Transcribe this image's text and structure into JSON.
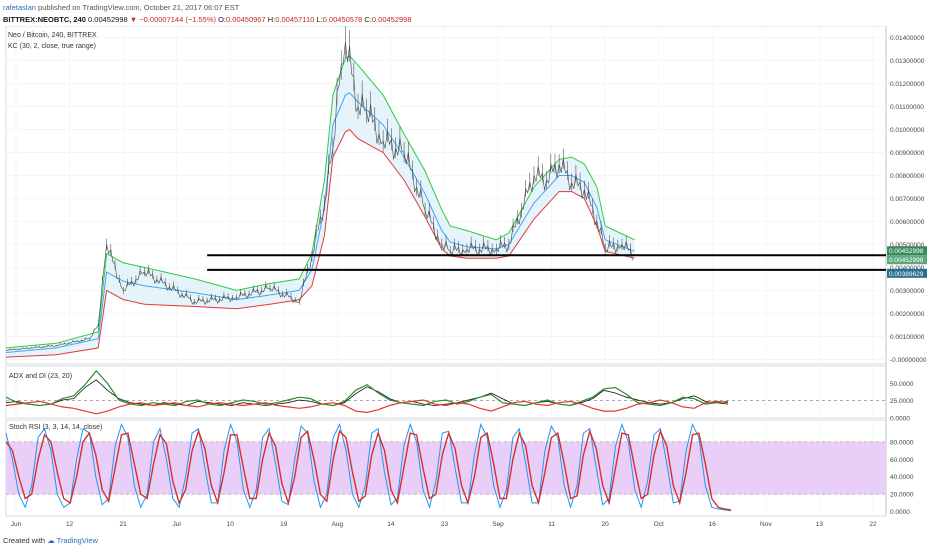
{
  "header": {
    "user": "rafetaslan",
    "published": "published on TradingView.com, October 21, 2017 06:07 EST",
    "symbol": "BITTREX:NEOBTC, 240",
    "last": "0.00452998",
    "change": "▼ −0.00007144 (−1.55%)",
    "o_label": "O:",
    "o": "0.00450967",
    "h_label": "H:",
    "h": "0.00457110",
    "l_label": "L:",
    "l": "0.00450578",
    "c_label": "C:",
    "c": "0.00452998"
  },
  "legend": {
    "title": "Neo / Bitcoin, 240, BITTREX",
    "kc": "KC (30, 2, close, true range)"
  },
  "indicators": {
    "adx": "ADX and DI (23, 20)",
    "stoch": "Stoch RSI (3, 3, 14, 14, close)"
  },
  "footer": {
    "created": "Created with",
    "brand": "TradingView"
  },
  "colors": {
    "upper_band": "#2ecc40",
    "lower_band": "#e53935",
    "mid_band": "#42a5f5",
    "fill": "#dff0fa",
    "adx": "#111111",
    "di_plus": "#2e8b2e",
    "di_minus": "#e53935",
    "stoch_k": "#2196f3",
    "stoch_d": "#d32f2f",
    "stoch_band": "#e9cff7"
  },
  "chart_data": [
    {
      "type": "line",
      "title": "Neo / Bitcoin, 240, BITTREX",
      "yticks": [
        "0.01400000",
        "0.01300000",
        "0.01200000",
        "0.01100000",
        "0.01000000",
        "0.00900000",
        "0.00800000",
        "0.00700000",
        "0.00600000",
        "0.00500000",
        "0.00400000",
        "0.00300000",
        "0.00200000",
        "0.00100000",
        "-0.00000000"
      ],
      "ylim": [
        -0.0002,
        0.0145
      ],
      "xticks": [
        "Jun",
        "12",
        "21",
        "Jul",
        "10",
        "19",
        "Aug",
        "14",
        "23",
        "Sep",
        "11",
        "20",
        "Oct",
        "16",
        "Nov",
        "13",
        "22"
      ],
      "price_labels": [
        "0.00452998",
        "0.00452998",
        "0.00389629"
      ],
      "series": [
        {
          "name": "upper",
          "x": [
            0,
            12,
            22,
            24,
            28,
            33,
            45,
            55,
            63,
            70,
            73,
            76,
            78,
            81,
            82,
            84,
            90,
            95,
            100,
            104,
            106,
            110,
            117,
            120,
            126,
            132,
            135,
            138,
            141,
            143,
            150
          ],
          "values": [
            0.0005,
            0.0007,
            0.0012,
            0.0046,
            0.0042,
            0.004,
            0.0035,
            0.003,
            0.0033,
            0.0035,
            0.0046,
            0.0078,
            0.0115,
            0.0131,
            0.0132,
            0.0128,
            0.0115,
            0.0098,
            0.0082,
            0.0065,
            0.0058,
            0.0056,
            0.0052,
            0.0055,
            0.0075,
            0.0087,
            0.0088,
            0.0085,
            0.0075,
            0.0058,
            0.0052
          ]
        },
        {
          "name": "middle",
          "x": [
            0,
            12,
            22,
            24,
            28,
            33,
            45,
            55,
            63,
            70,
            73,
            76,
            78,
            81,
            82,
            84,
            90,
            95,
            100,
            104,
            106,
            110,
            117,
            120,
            126,
            132,
            135,
            138,
            141,
            143,
            150
          ],
          "values": [
            0.0003,
            0.0005,
            0.0009,
            0.0038,
            0.0034,
            0.0032,
            0.0029,
            0.0026,
            0.0028,
            0.003,
            0.0039,
            0.0066,
            0.0102,
            0.0115,
            0.0116,
            0.0112,
            0.0102,
            0.0088,
            0.0072,
            0.0056,
            0.0051,
            0.0049,
            0.0048,
            0.005,
            0.0068,
            0.008,
            0.008,
            0.0077,
            0.0066,
            0.0052,
            0.0047
          ]
        },
        {
          "name": "lower",
          "x": [
            0,
            12,
            22,
            24,
            28,
            33,
            45,
            55,
            63,
            70,
            73,
            76,
            78,
            81,
            82,
            84,
            90,
            95,
            100,
            104,
            106,
            110,
            117,
            120,
            126,
            132,
            135,
            138,
            141,
            143,
            150
          ],
          "values": [
            0.0001,
            0.0002,
            0.0005,
            0.003,
            0.0026,
            0.0024,
            0.0023,
            0.0022,
            0.0024,
            0.0026,
            0.0032,
            0.0054,
            0.0088,
            0.0099,
            0.01,
            0.0096,
            0.009,
            0.0078,
            0.0062,
            0.0048,
            0.0045,
            0.0044,
            0.0044,
            0.0045,
            0.0061,
            0.0073,
            0.0073,
            0.007,
            0.0058,
            0.0047,
            0.0044
          ]
        },
        {
          "name": "close",
          "x": [
            0,
            12,
            20,
            22,
            24,
            28,
            33,
            45,
            55,
            63,
            70,
            73,
            76,
            78,
            80,
            81,
            84,
            86,
            90,
            95,
            100,
            104,
            106,
            110,
            117,
            120,
            126,
            129,
            132,
            135,
            138,
            141,
            143,
            147,
            150
          ],
          "values": [
            0.0004,
            0.0006,
            0.0009,
            0.0015,
            0.005,
            0.003,
            0.0038,
            0.0025,
            0.0027,
            0.0031,
            0.0025,
            0.0045,
            0.0068,
            0.0092,
            0.0128,
            0.0138,
            0.011,
            0.0108,
            0.0095,
            0.009,
            0.0065,
            0.005,
            0.0047,
            0.0048,
            0.0048,
            0.005,
            0.008,
            0.0078,
            0.0085,
            0.0077,
            0.0074,
            0.006,
            0.0048,
            0.005,
            0.0045
          ]
        }
      ],
      "hlines": [
        0.00452998,
        0.00389629
      ]
    },
    {
      "type": "line",
      "title": "ADX and DI (23, 20)",
      "yticks": [
        "50.0000",
        "25.0000",
        "0.0000"
      ],
      "ylim": [
        0,
        75
      ],
      "series": [
        {
          "name": "ADX",
          "values": [
            22,
            24,
            20,
            18,
            20,
            26,
            28,
            44,
            55,
            40,
            28,
            22,
            20,
            18,
            22,
            20,
            18,
            24,
            22,
            20,
            18,
            22,
            20,
            18,
            20,
            22,
            26,
            24,
            20,
            18,
            22,
            35,
            45,
            38,
            28,
            22,
            24,
            20,
            18,
            20,
            22,
            26,
            30,
            36,
            28,
            20,
            18,
            22,
            24,
            20,
            18,
            22,
            28,
            40,
            36,
            30,
            26,
            22,
            20,
            22,
            28,
            32,
            24,
            22,
            20
          ]
        },
        {
          "name": "DI+",
          "values": [
            30,
            22,
            20,
            18,
            20,
            28,
            32,
            48,
            68,
            50,
            26,
            20,
            18,
            22,
            20,
            18,
            24,
            26,
            20,
            18,
            22,
            26,
            24,
            20,
            22,
            26,
            30,
            28,
            20,
            18,
            24,
            40,
            48,
            36,
            26,
            22,
            20,
            18,
            24,
            26,
            20,
            24,
            30,
            34,
            22,
            20,
            18,
            22,
            26,
            20,
            18,
            24,
            30,
            42,
            44,
            34,
            22,
            20,
            18,
            22,
            30,
            28,
            20,
            22,
            24
          ]
        },
        {
          "name": "DI-",
          "values": [
            18,
            20,
            22,
            24,
            20,
            16,
            14,
            10,
            6,
            10,
            16,
            20,
            22,
            18,
            20,
            22,
            18,
            16,
            20,
            22,
            20,
            18,
            20,
            22,
            18,
            16,
            14,
            16,
            20,
            22,
            18,
            10,
            8,
            12,
            18,
            22,
            24,
            26,
            20,
            18,
            22,
            20,
            14,
            10,
            16,
            22,
            24,
            20,
            18,
            22,
            24,
            20,
            14,
            10,
            10,
            14,
            20,
            22,
            26,
            22,
            16,
            14,
            22,
            24,
            22
          ]
        }
      ],
      "hline": 25
    },
    {
      "type": "line",
      "title": "Stoch RSI (3, 3, 14, 14, close)",
      "yticks": [
        "80.0000",
        "60.0000",
        "40.0000",
        "20.0000",
        "0.0000"
      ],
      "ylim": [
        -5,
        105
      ],
      "band": [
        20,
        80
      ],
      "series": [
        {
          "name": "K",
          "values": [
            90,
            60,
            20,
            5,
            30,
            85,
            95,
            70,
            20,
            5,
            10,
            60,
            95,
            90,
            40,
            8,
            15,
            75,
            100,
            85,
            30,
            5,
            20,
            80,
            95,
            60,
            15,
            5,
            40,
            90,
            95,
            50,
            10,
            10,
            70,
            100,
            80,
            25,
            5,
            25,
            85,
            95,
            55,
            12,
            8,
            60,
            98,
            90,
            35,
            5,
            20,
            85,
            100,
            70,
            20,
            5,
            30,
            90,
            95,
            45,
            8,
            15,
            75,
            100,
            80,
            25,
            5,
            35,
            90,
            92,
            50,
            10,
            10,
            65,
            100,
            85,
            30,
            5,
            25,
            85,
            95,
            55,
            10,
            10,
            70,
            98,
            85,
            30,
            5,
            30,
            90,
            95,
            50,
            8,
            15,
            75,
            100,
            80,
            25,
            5,
            35,
            88,
            95,
            55,
            10,
            12,
            70,
            100,
            85,
            30,
            5,
            3,
            2,
            1
          ]
        },
        {
          "name": "D",
          "values": [
            80,
            70,
            40,
            15,
            20,
            60,
            88,
            80,
            45,
            15,
            10,
            40,
            80,
            90,
            65,
            25,
            12,
            50,
            88,
            90,
            55,
            20,
            15,
            55,
            88,
            78,
            35,
            10,
            25,
            70,
            92,
            72,
            30,
            10,
            45,
            88,
            88,
            50,
            15,
            15,
            60,
            90,
            75,
            32,
            10,
            40,
            85,
            92,
            60,
            20,
            12,
            60,
            92,
            85,
            45,
            12,
            18,
            65,
            90,
            70,
            25,
            10,
            50,
            90,
            88,
            50,
            15,
            20,
            65,
            90,
            72,
            30,
            10,
            40,
            85,
            90,
            55,
            15,
            15,
            60,
            90,
            75,
            30,
            10,
            45,
            85,
            90,
            55,
            15,
            18,
            65,
            92,
            72,
            30,
            10,
            50,
            90,
            88,
            50,
            15,
            20,
            65,
            92,
            75,
            30,
            10,
            45,
            88,
            90,
            55,
            15,
            5,
            3,
            2
          ]
        }
      ]
    }
  ]
}
